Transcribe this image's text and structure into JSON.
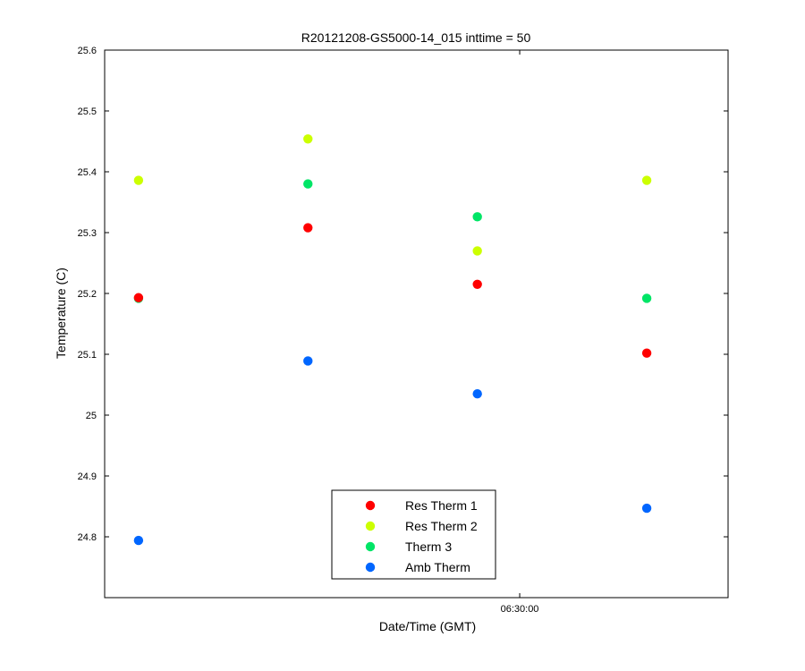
{
  "chart_data": {
    "type": "scatter",
    "title": "R20121208-GS5000-14_015 inttime = 50",
    "xlabel": "Date/Time (GMT)",
    "ylabel": "Temperature (C)",
    "ylim": [
      24.7,
      25.6
    ],
    "yticks": [
      "24.8",
      "24.9",
      "25",
      "25.1",
      "25.2",
      "25.3",
      "25.4",
      "25.5",
      "25.6"
    ],
    "xtick_labels": [
      "06:30:00"
    ],
    "x_points": [
      0,
      1,
      2,
      3
    ],
    "xlim": [
      -0.2,
      3.48
    ],
    "xtick_positions": [
      2.25
    ],
    "grid": false,
    "legend_position": "bottom-center",
    "series": [
      {
        "name": "Res Therm 1",
        "color": "#ff0000",
        "values": [
          25.193,
          25.308,
          25.215,
          25.102
        ]
      },
      {
        "name": "Res Therm 2",
        "color": "#ccff00",
        "values": [
          25.386,
          25.454,
          25.27,
          25.386
        ]
      },
      {
        "name": "Therm 3",
        "color": "#00e566",
        "values": [
          25.192,
          25.38,
          25.326,
          25.192
        ]
      },
      {
        "name": "Amb Therm",
        "color": "#0066ff",
        "values": [
          24.794,
          25.089,
          25.035,
          24.847
        ]
      }
    ]
  }
}
